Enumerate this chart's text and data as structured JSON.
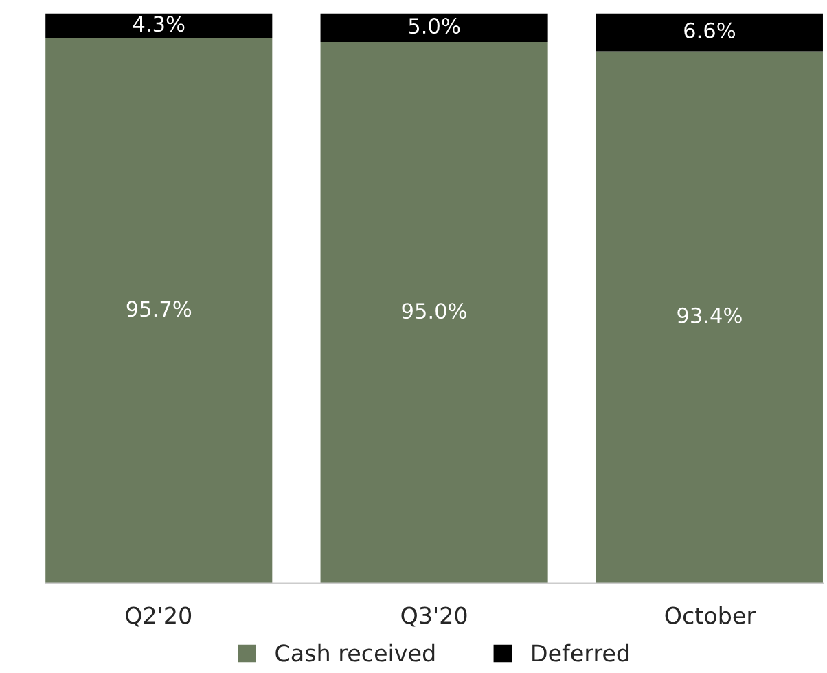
{
  "chart_data": {
    "type": "bar",
    "stacked": true,
    "categories": [
      "Q2'20",
      "Q3'20",
      "October"
    ],
    "series": [
      {
        "name": "Cash received",
        "color": "#6b7b5e",
        "values": [
          95.7,
          95.0,
          93.4
        ],
        "value_labels": [
          "95.7%",
          "95.0%",
          "93.4%"
        ]
      },
      {
        "name": "Deferred",
        "color": "#000000",
        "values": [
          4.3,
          5.0,
          6.6
        ],
        "value_labels": [
          "4.3%",
          "5.0%",
          "6.6%"
        ]
      }
    ],
    "ylim": [
      0,
      100
    ],
    "tick_labels": "x",
    "legend": "bottom",
    "grid": false
  }
}
